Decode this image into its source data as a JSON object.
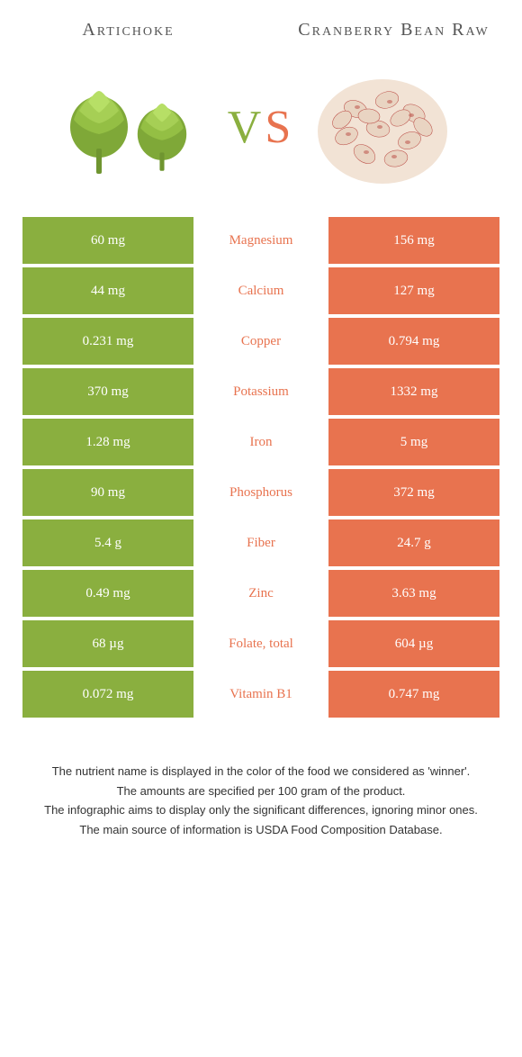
{
  "food_left": {
    "name": "Artichoke",
    "color": "#8aaf3f"
  },
  "food_right": {
    "name": "Cranberry Bean Raw",
    "color": "#e8734f"
  },
  "vs": {
    "v": "V",
    "s": "S"
  },
  "rows": [
    {
      "nutrient": "Magnesium",
      "left": "60 mg",
      "right": "156 mg",
      "winner": "right"
    },
    {
      "nutrient": "Calcium",
      "left": "44 mg",
      "right": "127 mg",
      "winner": "right"
    },
    {
      "nutrient": "Copper",
      "left": "0.231 mg",
      "right": "0.794 mg",
      "winner": "right"
    },
    {
      "nutrient": "Potassium",
      "left": "370 mg",
      "right": "1332 mg",
      "winner": "right"
    },
    {
      "nutrient": "Iron",
      "left": "1.28 mg",
      "right": "5 mg",
      "winner": "right"
    },
    {
      "nutrient": "Phosphorus",
      "left": "90 mg",
      "right": "372 mg",
      "winner": "right"
    },
    {
      "nutrient": "Fiber",
      "left": "5.4 g",
      "right": "24.7 g",
      "winner": "right"
    },
    {
      "nutrient": "Zinc",
      "left": "0.49 mg",
      "right": "3.63 mg",
      "winner": "right"
    },
    {
      "nutrient": "Folate, total",
      "left": "68 µg",
      "right": "604 µg",
      "winner": "right"
    },
    {
      "nutrient": "Vitamin B1",
      "left": "0.072 mg",
      "right": "0.747 mg",
      "winner": "right"
    }
  ],
  "footer": {
    "l1": "The nutrient name is displayed in the color of the food we considered as 'winner'.",
    "l2": "The amounts are specified per 100 gram of the product.",
    "l3": "The infographic aims to display only the significant differences, ignoring minor ones.",
    "l4": "The main source of information is USDA Food Composition Database."
  }
}
